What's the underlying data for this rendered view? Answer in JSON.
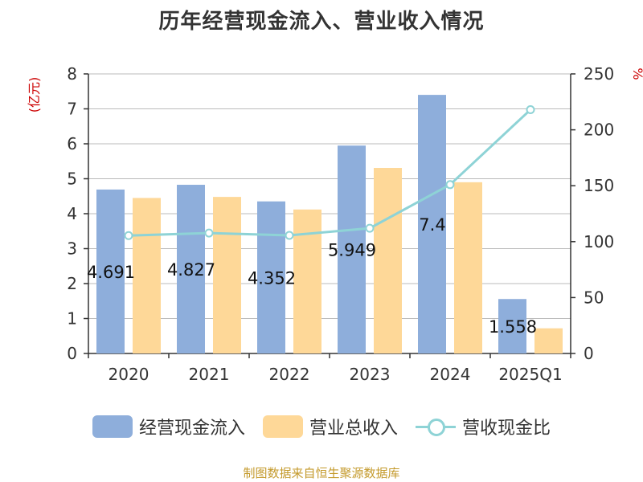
{
  "chart_data": {
    "type": "bar",
    "title": "历年经营现金流入、营业收入情况",
    "categories": [
      "2020",
      "2021",
      "2022",
      "2023",
      "2024",
      "2025Q1"
    ],
    "y_left": {
      "unit": "(亿元)",
      "ylim": [
        0,
        8
      ],
      "ticks": [
        "0",
        "1",
        "2",
        "3",
        "4",
        "5",
        "6",
        "7",
        "8"
      ]
    },
    "y_right": {
      "unit": "%",
      "ylim": [
        0,
        250
      ],
      "ticks": [
        "0",
        "50",
        "100",
        "150",
        "200",
        "250"
      ]
    },
    "series": [
      {
        "name": "经营现金流入",
        "kind": "bar",
        "axis": "left",
        "color": "#8eaedb",
        "values": [
          4.691,
          4.827,
          4.352,
          5.949,
          7.4,
          1.558
        ],
        "labels": [
          "4.691",
          "4.827",
          "4.352",
          "5.949",
          "7.4",
          "1.558"
        ]
      },
      {
        "name": "营业总收入",
        "kind": "bar",
        "axis": "left",
        "color": "#fed898",
        "values": [
          4.45,
          4.48,
          4.12,
          5.31,
          4.9,
          0.72
        ]
      },
      {
        "name": "营收现金比",
        "kind": "line",
        "axis": "right",
        "color": "#8ed3d6",
        "values": [
          105.4,
          107.7,
          105.6,
          112.0,
          151.0,
          218.0
        ]
      }
    ],
    "grid": true,
    "legend_position": "bottom"
  },
  "source_note": "制图数据来自恒生聚源数据库"
}
